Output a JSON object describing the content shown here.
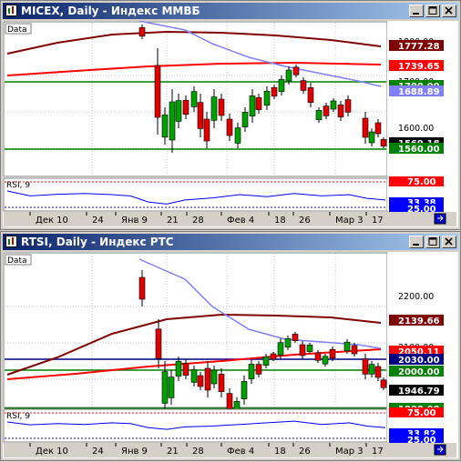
{
  "windows": [
    {
      "title": "MICEX, Daily - Индекс ММВБ",
      "price_panel_label": "Data",
      "rsi_label": "RSI, 9",
      "price_axis_ticks": [
        "1800.00",
        "1700.00",
        "1600.00"
      ],
      "price_labels": [
        {
          "text": "1777.28",
          "bg": "#800000"
        },
        {
          "text": "1739.65",
          "bg": "#ff0000"
        },
        {
          "text": "1700.00",
          "bg": "#008000"
        },
        {
          "text": "1688.89",
          "bg": "#8080ff"
        },
        {
          "text": "1569.18",
          "bg": "#000000"
        },
        {
          "text": "1560.00",
          "bg": "#008000"
        }
      ],
      "rsi_labels": [
        {
          "text": "75.00",
          "bg": "#ff0000"
        },
        {
          "text": "33.38",
          "bg": "#0000ff"
        },
        {
          "text": "25.00",
          "bg": "#0000ff"
        }
      ],
      "date_labels": [
        "Дек 10",
        "24",
        "Янв 9",
        "21",
        "28",
        "Фев 4",
        "18",
        "26",
        "Мар 3",
        "17"
      ]
    },
    {
      "title": "RTSI, Daily - Индекс РТС",
      "price_panel_label": "Data",
      "rsi_label": "RSI, 9",
      "price_axis_ticks": [
        "2200.00",
        "2100.00"
      ],
      "price_labels": [
        {
          "text": "2139.66",
          "bg": "#800000"
        },
        {
          "text": "2050.11",
          "bg": "#ff0000"
        },
        {
          "text": "2030.00",
          "bg": "#000080"
        },
        {
          "text": "2000.00",
          "bg": "#008000"
        },
        {
          "text": "1946.79",
          "bg": "#000000"
        },
        {
          "text": "1900.00",
          "bg": "#008000"
        }
      ],
      "rsi_labels": [
        {
          "text": "75.00",
          "bg": "#ff0000"
        },
        {
          "text": "33.82",
          "bg": "#0000ff"
        },
        {
          "text": "25.00",
          "bg": "#0000ff"
        }
      ],
      "date_labels": [
        "Дек 10",
        "24",
        "Янв 9",
        "21",
        "28",
        "Фев 4",
        "18",
        "26",
        "Мар 3",
        "17"
      ]
    }
  ],
  "colors": {
    "bull_candle": "#00a000",
    "bear_candle": "#e00000",
    "ma_long": "#800000",
    "ma_mid": "#ff0000",
    "ma_short": "#8080ff",
    "support_line": "#008000",
    "rsi_line": "#0000ff"
  }
}
